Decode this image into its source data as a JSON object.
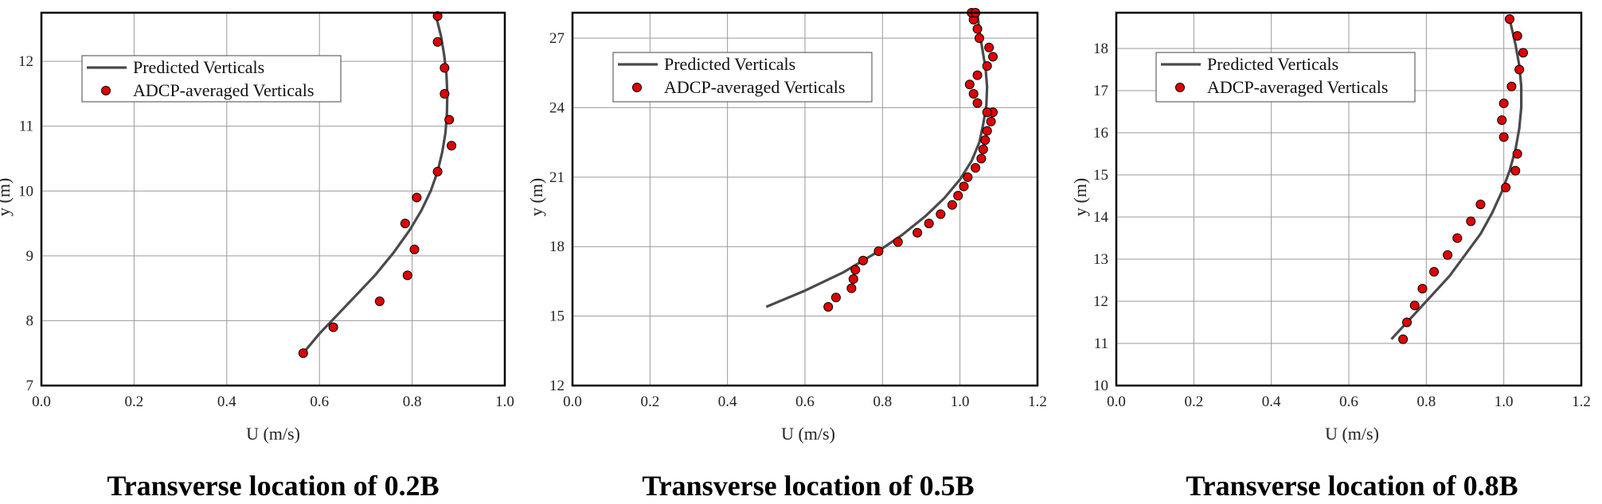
{
  "colors": {
    "curve": "#4a4a4a",
    "marker_fill": "#e00000",
    "marker_stroke": "#000000",
    "grid": "#9a9a9a",
    "frame": "#000000"
  },
  "chart_data": [
    {
      "type": "scatter",
      "title": "Transverse location of 0.2B",
      "xlabel": "U (m/s)",
      "ylabel": "y (m)",
      "xlim": [
        0.0,
        1.0
      ],
      "ylim": [
        7,
        12.75
      ],
      "xticks": [
        "0.0",
        "0.2",
        "0.4",
        "0.6",
        "0.8",
        "1.0"
      ],
      "yticks": [
        "7",
        "8",
        "9",
        "10",
        "11",
        "12"
      ],
      "grid": true,
      "legend": {
        "placement": "top-left",
        "entries": [
          "Predicted Verticals",
          "ADCP-averaged Verticals"
        ]
      },
      "series": [
        {
          "name": "Predicted Verticals",
          "kind": "line",
          "x": [
            0.565,
            0.6,
            0.64,
            0.68,
            0.72,
            0.76,
            0.795,
            0.82,
            0.84,
            0.855,
            0.865,
            0.872,
            0.875,
            0.876,
            0.874,
            0.869,
            0.862,
            0.855,
            0.85
          ],
          "y": [
            7.5,
            7.8,
            8.1,
            8.4,
            8.7,
            9.05,
            9.4,
            9.7,
            10.0,
            10.3,
            10.6,
            10.9,
            11.2,
            11.5,
            11.8,
            12.1,
            12.4,
            12.6,
            12.75
          ]
        },
        {
          "name": "ADCP-averaged Verticals",
          "kind": "scatter",
          "x": [
            0.565,
            0.63,
            0.73,
            0.79,
            0.805,
            0.785,
            0.81,
            0.855,
            0.885,
            0.88,
            0.87,
            0.87,
            0.855,
            0.855
          ],
          "y": [
            7.5,
            7.9,
            8.3,
            8.7,
            9.1,
            9.5,
            9.9,
            10.3,
            10.7,
            11.1,
            11.5,
            11.9,
            12.3,
            12.7
          ]
        }
      ]
    },
    {
      "type": "scatter",
      "title": "Transverse location of 0.5B",
      "xlabel": "U (m/s)",
      "ylabel": "y (m)",
      "xlim": [
        0.0,
        1.2
      ],
      "ylim": [
        12,
        28.1
      ],
      "xticks": [
        "0.0",
        "0.2",
        "0.4",
        "0.6",
        "0.8",
        "1.0",
        "1.2"
      ],
      "yticks": [
        "12",
        "15",
        "18",
        "21",
        "24",
        "27"
      ],
      "grid": true,
      "legend": {
        "placement": "top-left",
        "entries": [
          "Predicted Verticals",
          "ADCP-averaged Verticals"
        ]
      },
      "series": [
        {
          "name": "Predicted Verticals",
          "kind": "line",
          "x": [
            0.5,
            0.6,
            0.7,
            0.78,
            0.85,
            0.91,
            0.96,
            1.0,
            1.03,
            1.05,
            1.06,
            1.068,
            1.07,
            1.066,
            1.058,
            1.05,
            1.045
          ],
          "y": [
            15.4,
            16.1,
            16.9,
            17.7,
            18.5,
            19.3,
            20.1,
            20.9,
            21.7,
            22.5,
            23.3,
            24.1,
            24.9,
            25.7,
            26.5,
            27.3,
            28.1
          ]
        },
        {
          "name": "ADCP-averaged Verticals",
          "kind": "scatter",
          "x": [
            0.66,
            0.68,
            0.72,
            0.725,
            0.73,
            0.75,
            0.79,
            0.84,
            0.89,
            0.92,
            0.95,
            0.98,
            0.995,
            1.01,
            1.02,
            1.04,
            1.055,
            1.06,
            1.065,
            1.07,
            1.08,
            1.085,
            1.07,
            1.045,
            1.035,
            1.025,
            1.045,
            1.07,
            1.085,
            1.075,
            1.05,
            1.045,
            1.035,
            1.03,
            1.04
          ],
          "y": [
            15.4,
            15.8,
            16.2,
            16.6,
            17.0,
            17.4,
            17.8,
            18.2,
            18.6,
            19.0,
            19.4,
            19.8,
            20.2,
            20.6,
            21.0,
            21.4,
            21.8,
            22.2,
            22.6,
            23.0,
            23.4,
            23.8,
            23.8,
            24.2,
            24.6,
            25.0,
            25.4,
            25.8,
            26.2,
            26.6,
            27.0,
            27.4,
            27.8,
            28.1,
            28.1
          ]
        }
      ]
    },
    {
      "type": "scatter",
      "title": "Transverse location of 0.8B",
      "xlabel": "U (m/s)",
      "ylabel": "y (m)",
      "xlim": [
        0.0,
        1.2
      ],
      "ylim": [
        10,
        18.85
      ],
      "xticks": [
        "0.0",
        "0.2",
        "0.4",
        "0.6",
        "0.8",
        "1.0",
        "1.2"
      ],
      "yticks": [
        "10",
        "11",
        "12",
        "13",
        "14",
        "15",
        "16",
        "17",
        "18"
      ],
      "grid": true,
      "legend": {
        "placement": "top-left",
        "entries": [
          "Predicted Verticals",
          "ADCP-averaged Verticals"
        ]
      },
      "series": [
        {
          "name": "Predicted Verticals",
          "kind": "line",
          "x": [
            0.71,
            0.76,
            0.81,
            0.86,
            0.9,
            0.94,
            0.97,
            0.995,
            1.015,
            1.03,
            1.04,
            1.045,
            1.045,
            1.04,
            1.03,
            1.02,
            1.012
          ],
          "y": [
            11.1,
            11.6,
            12.1,
            12.6,
            13.1,
            13.6,
            14.1,
            14.6,
            15.1,
            15.6,
            16.1,
            16.6,
            17.1,
            17.6,
            18.1,
            18.5,
            18.8
          ]
        },
        {
          "name": "ADCP-averaged Verticals",
          "kind": "scatter",
          "x": [
            0.74,
            0.75,
            0.77,
            0.79,
            0.82,
            0.855,
            0.88,
            0.915,
            0.94,
            1.005,
            1.03,
            1.035,
            1.0,
            0.995,
            1.0,
            1.02,
            1.04,
            1.05,
            1.035,
            1.015
          ],
          "y": [
            11.1,
            11.5,
            11.9,
            12.3,
            12.7,
            13.1,
            13.5,
            13.9,
            14.3,
            14.7,
            15.1,
            15.5,
            15.9,
            16.3,
            16.7,
            17.1,
            17.5,
            17.9,
            18.3,
            18.7
          ]
        }
      ]
    }
  ]
}
